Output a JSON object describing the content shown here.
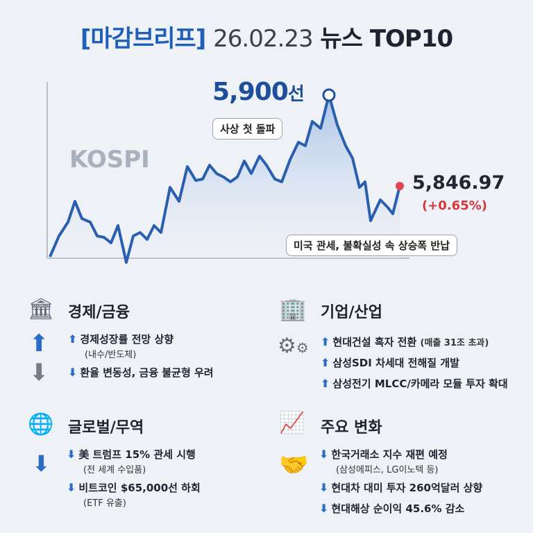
{
  "title": {
    "bracket": "[마감브리프]",
    "date": "26.02.23",
    "rest": "뉴스 TOP10"
  },
  "chart": {
    "index_label": "KOSPI",
    "peak_label": "5,900",
    "peak_unit": "선",
    "peak_note": "사상 첫 돌파",
    "close_value": "5,846.97",
    "change": "(+0.65%)",
    "close_note": "미국 관세, 불확실성 속 상승폭 반납",
    "line_color": "#2a5fb0",
    "up_color": "#d0383d"
  },
  "sections": [
    {
      "title": "경제/금융",
      "icon": "bank-icon",
      "items": [
        {
          "dir": "up",
          "text": "경제성장률 전망 상향",
          "sub": "(내수/반도체)"
        },
        {
          "dir": "down",
          "text": "환율 변동성, 금융 불균형 우려",
          "sub": ""
        }
      ]
    },
    {
      "title": "기업/산업",
      "icon": "building-icon",
      "items": [
        {
          "dir": "up",
          "text": "현대건설 흑자 전환",
          "sub": "(매출 31조 초과)"
        },
        {
          "dir": "up",
          "text": "삼성SDI 차세대 전해질 개발",
          "sub": ""
        },
        {
          "dir": "up",
          "text": "삼성전기 MLCC/카메라 모듈 투자 확대",
          "sub": ""
        }
      ]
    },
    {
      "title": "글로벌/무역",
      "icon": "globe-icon",
      "items": [
        {
          "dir": "down",
          "text": "美 트럼프 15% 관세 시행",
          "sub": "(전 세계 수입품)"
        },
        {
          "dir": "down",
          "text": "비트코인 $65,000선 하회",
          "sub": "(ETF 유출)"
        }
      ]
    },
    {
      "title": "주요 변화",
      "icon": "growth-chart-icon",
      "items": [
        {
          "dir": "down",
          "text": "한국거래소 지수 재편 예정",
          "sub": "(삼성에피스, LG이노텍 등)"
        },
        {
          "dir": "down",
          "text": "현대차 대미 투자 260억달러 상향",
          "sub": ""
        },
        {
          "dir": "down",
          "text": "현대해상 순이익 45.6% 감소",
          "sub": ""
        }
      ]
    }
  ]
}
